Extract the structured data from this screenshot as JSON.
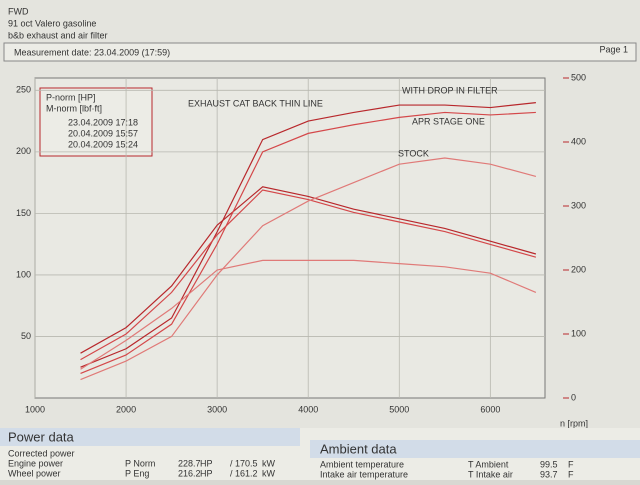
{
  "header": {
    "lines": [
      "FWD",
      "91 oct Valero gasoline",
      "b&b exhaust and air filter"
    ],
    "measurement": "Measurement date: 23.04.2009 (17:59)",
    "page": "Page 1"
  },
  "chart_data": {
    "type": "line",
    "x": [
      1500,
      2000,
      2500,
      3000,
      3500,
      4000,
      4500,
      5000,
      5500,
      6000,
      6500
    ],
    "xlim": [
      1000,
      6600
    ],
    "xticks": [
      1000,
      2000,
      3000,
      4000,
      5000,
      6000
    ],
    "xlabel": "n [rpm]",
    "ylim": [
      0,
      260
    ],
    "yticks": [
      50,
      100,
      150,
      200,
      250
    ],
    "y2lim": [
      0,
      500
    ],
    "y2ticks": [
      0,
      100,
      200,
      300,
      400,
      500
    ],
    "grid": true,
    "legend_quantities": [
      "P-norm [HP]",
      "M-norm [lbf·ft]"
    ],
    "series": [
      {
        "name": "23.04.2009 17:18",
        "color": "#b8282c",
        "values": [
          25,
          40,
          65,
          135,
          210,
          225,
          232,
          238,
          238,
          236,
          240
        ],
        "torque_values": [
          70,
          110,
          175,
          270,
          330,
          315,
          295,
          280,
          265,
          245,
          225
        ]
      },
      {
        "name": "20.04.2009 15:57",
        "color": "#d4484a",
        "values": [
          20,
          35,
          60,
          125,
          200,
          215,
          222,
          228,
          232,
          230,
          232
        ],
        "torque_values": [
          60,
          100,
          165,
          255,
          325,
          310,
          290,
          275,
          260,
          240,
          220
        ]
      },
      {
        "name": "20.04.2009 15:24",
        "color": "#e07a78",
        "values": [
          15,
          30,
          50,
          100,
          140,
          160,
          175,
          190,
          195,
          190,
          180
        ],
        "torque_values": [
          45,
          90,
          140,
          200,
          215,
          215,
          215,
          210,
          205,
          195,
          165
        ]
      }
    ],
    "annotations": [
      "EXHAUST CAT BACK THIN LINE",
      "WITH DROP IN FILTER",
      "APR STAGE ONE",
      "STOCK"
    ]
  },
  "power_data": {
    "title": "Power data",
    "rows": [
      [
        "Corrected power",
        "",
        "",
        "",
        "",
        ""
      ],
      [
        "Engine power",
        "P Norm",
        "228.7",
        "HP",
        "/ 170.5",
        "kW"
      ],
      [
        "Wheel power",
        "P Eng",
        "216.2",
        "HP",
        "/ 161.2",
        "kW"
      ]
    ]
  },
  "ambient_data": {
    "title": "Ambient data",
    "rows": [
      [
        "Ambient temperature",
        "T Ambient",
        "99.5",
        "F"
      ],
      [
        "Intake air temperature",
        "T Intake air",
        "93.7",
        "F"
      ]
    ]
  }
}
